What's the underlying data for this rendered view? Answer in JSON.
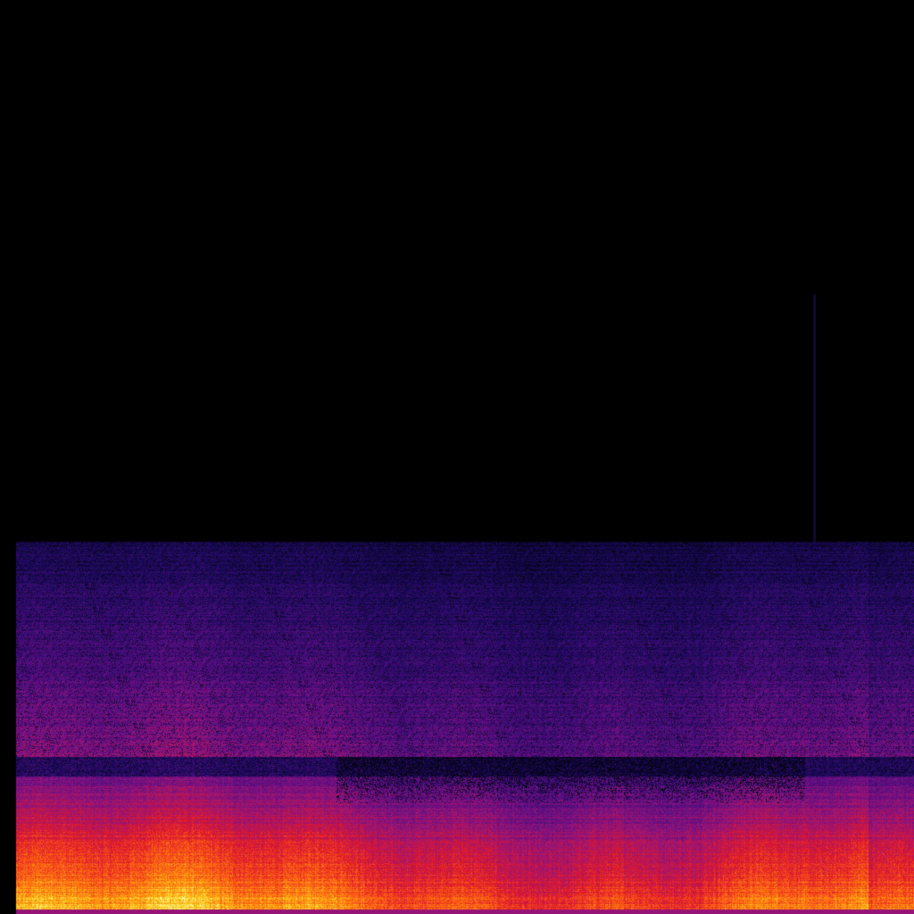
{
  "image": {
    "kind": "spectrogram",
    "colormap": "inferno-like",
    "background_color": "#000000",
    "colors": {
      "low": "#000000",
      "dark_blue": "#1a0a5e",
      "purple": "#6a0f8a",
      "magenta": "#a8157a",
      "red": "#e0182c",
      "orange": "#ff6a10",
      "yellow": "#ffd21a"
    }
  }
}
